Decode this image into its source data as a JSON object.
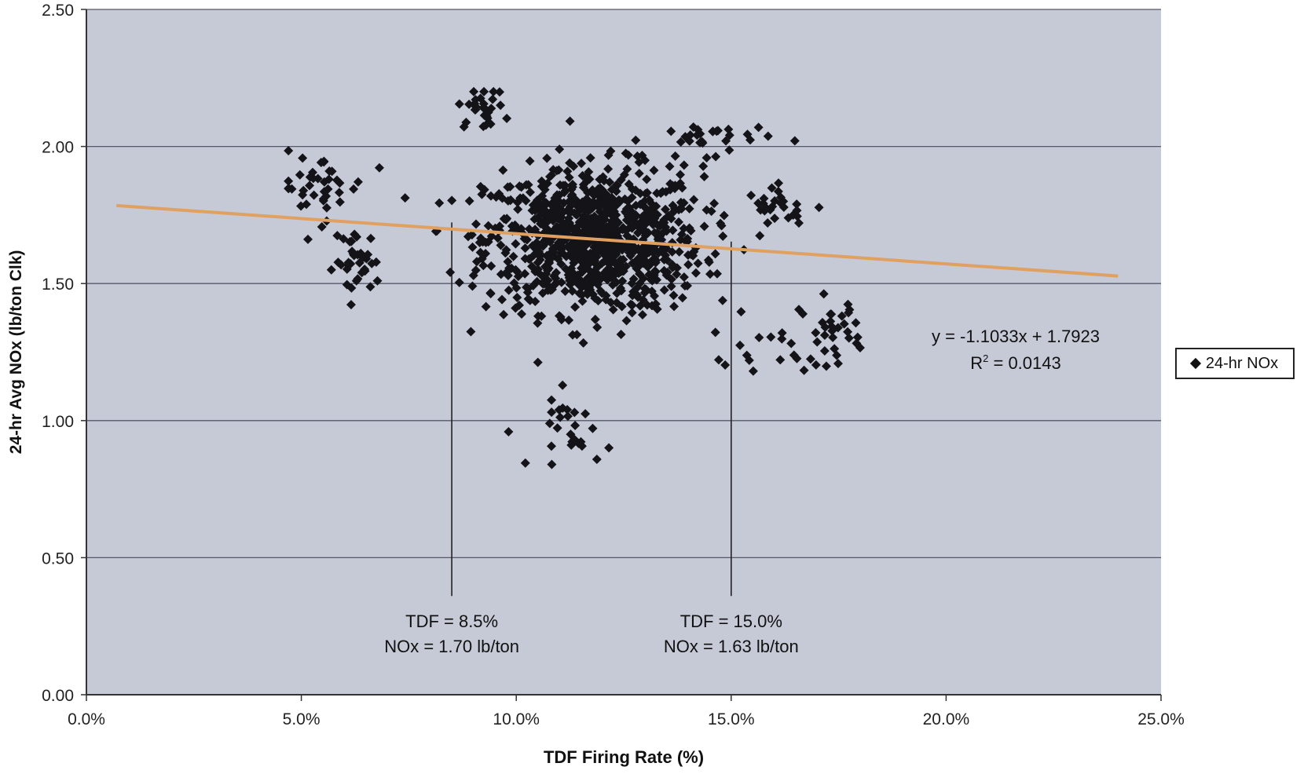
{
  "chart_data": {
    "type": "scatter",
    "xlabel": "TDF Firing Rate (%)",
    "ylabel": "24-hr Avg NOx (lb/ton Clk)",
    "xlim": [
      0.0,
      25.0
    ],
    "ylim": [
      0.0,
      2.5
    ],
    "x_ticks": [
      "0.0%",
      "5.0%",
      "10.0%",
      "15.0%",
      "20.0%",
      "25.0%"
    ],
    "y_ticks": [
      "0.00",
      "0.50",
      "1.00",
      "1.50",
      "2.00",
      "2.50"
    ],
    "grid": "horizontal",
    "legend_position": "right",
    "colors": {
      "plot_bg": "#c6c9d6",
      "points": "#141418",
      "trendline": "#e0a060",
      "gridline": "#55596a"
    },
    "series": [
      {
        "name": "24-hr NOx",
        "marker": "diamond",
        "clusters": [
          {
            "cx": 11.8,
            "cy": 1.66,
            "sx": 2.1,
            "sy": 0.22,
            "n": 950
          },
          {
            "cx": 9.2,
            "cy": 2.14,
            "sx": 0.45,
            "sy": 0.06,
            "n": 28
          },
          {
            "cx": 5.4,
            "cy": 1.85,
            "sx": 0.9,
            "sy": 0.1,
            "n": 40
          },
          {
            "cx": 6.3,
            "cy": 1.58,
            "sx": 0.45,
            "sy": 0.1,
            "n": 36
          },
          {
            "cx": 11.4,
            "cy": 0.95,
            "sx": 0.7,
            "sy": 0.1,
            "n": 26
          },
          {
            "cx": 17.3,
            "cy": 1.33,
            "sx": 0.6,
            "sy": 0.1,
            "n": 34
          },
          {
            "cx": 16.2,
            "cy": 1.78,
            "sx": 0.7,
            "sy": 0.06,
            "n": 26
          },
          {
            "cx": 14.5,
            "cy": 2.03,
            "sx": 1.2,
            "sy": 0.05,
            "n": 30
          },
          {
            "cx": 15.5,
            "cy": 1.25,
            "sx": 1.0,
            "sy": 0.08,
            "n": 14
          }
        ]
      }
    ],
    "trendline": {
      "slope": -1.1033,
      "intercept": 1.7923,
      "x_range": [
        0.7,
        24.0
      ],
      "equation": "y = -1.1033x + 1.7923",
      "r2_label": "R",
      "r2_sup": "2",
      "r2_value": " = 0.0143"
    },
    "annotations": [
      {
        "x": 8.5,
        "y": 1.7,
        "line1": "TDF = 8.5%",
        "line2": "NOx = 1.70 lb/ton"
      },
      {
        "x": 15.0,
        "y": 1.63,
        "line1": "TDF = 15.0%",
        "line2": "NOx = 1.63 lb/ton"
      }
    ]
  },
  "legend": {
    "label": "24-hr NOx"
  }
}
